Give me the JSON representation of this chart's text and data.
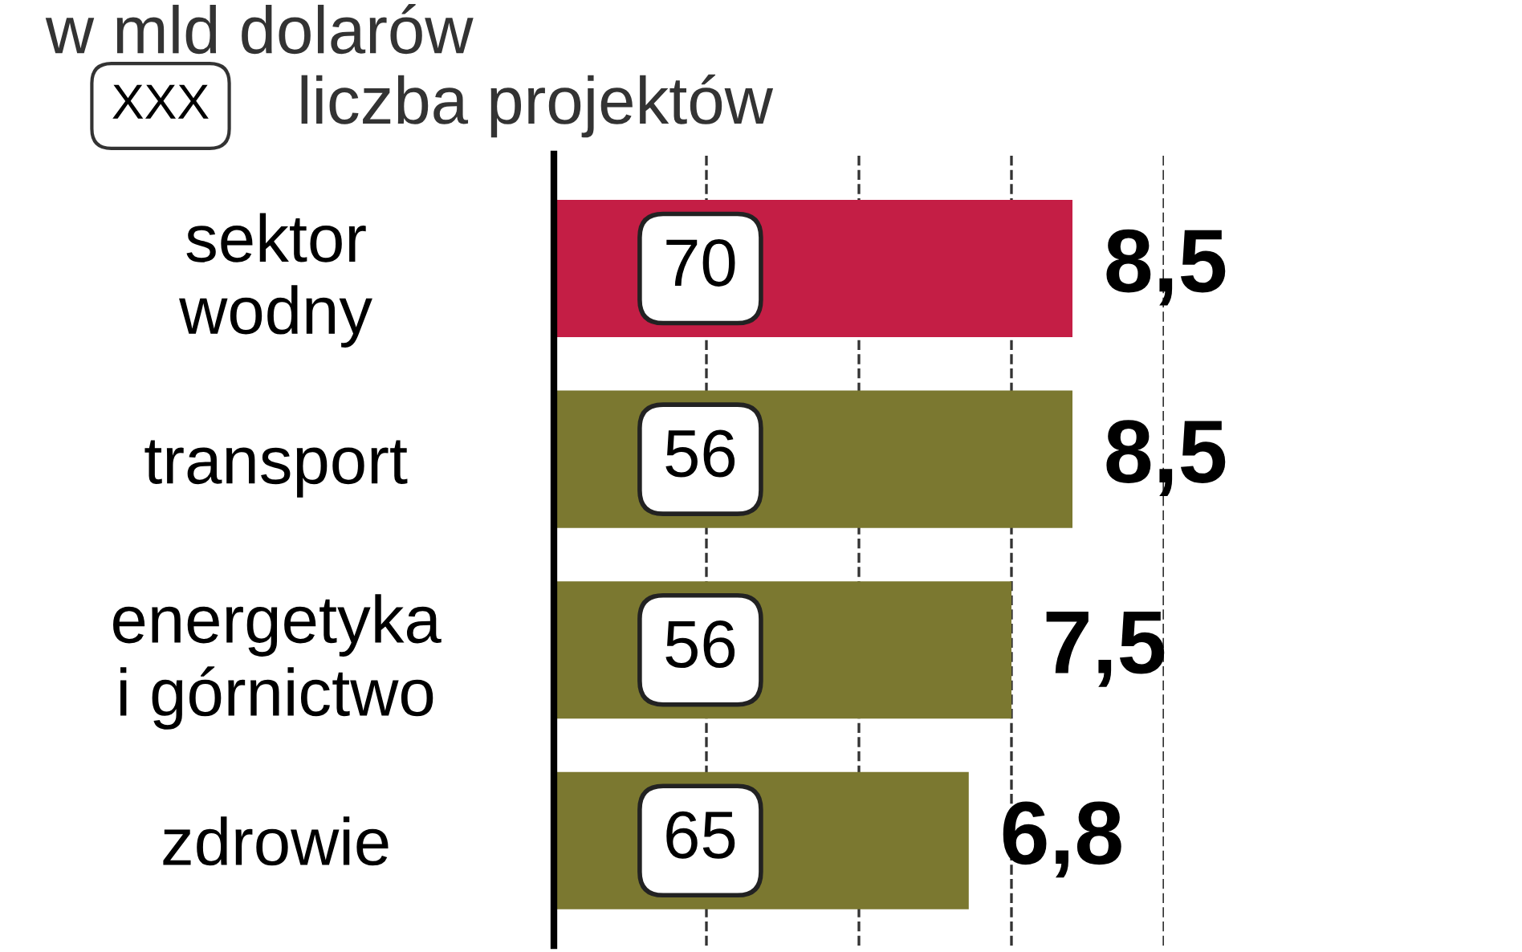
{
  "chart_data": {
    "type": "bar",
    "orientation": "horizontal",
    "title": "w mld dolarów",
    "categories": [
      "sektor\nwodny",
      "transport",
      "energetyka\ni górnictwo",
      "zdrowie"
    ],
    "values": [
      8.5,
      8.5,
      7.5,
      6.8
    ],
    "colors": [
      "#c41e45",
      "#7b7830",
      "#7b7830",
      "#7b7830"
    ],
    "value_labels": [
      "8,5",
      "8,5",
      "7,5",
      "6,8"
    ],
    "xticks": [
      {
        "value": 2.5,
        "label": null
      },
      {
        "value": 5,
        "label": null
      },
      {
        "value": 7.5,
        "label": null
      },
      {
        "value": 10,
        "label": null
      }
    ],
    "grid": "x",
    "line_style": "dashed",
    "annotations": [
      "XXX",
      "liczba projektów",
      "70",
      "56",
      "56",
      "65"
    ]
  }
}
